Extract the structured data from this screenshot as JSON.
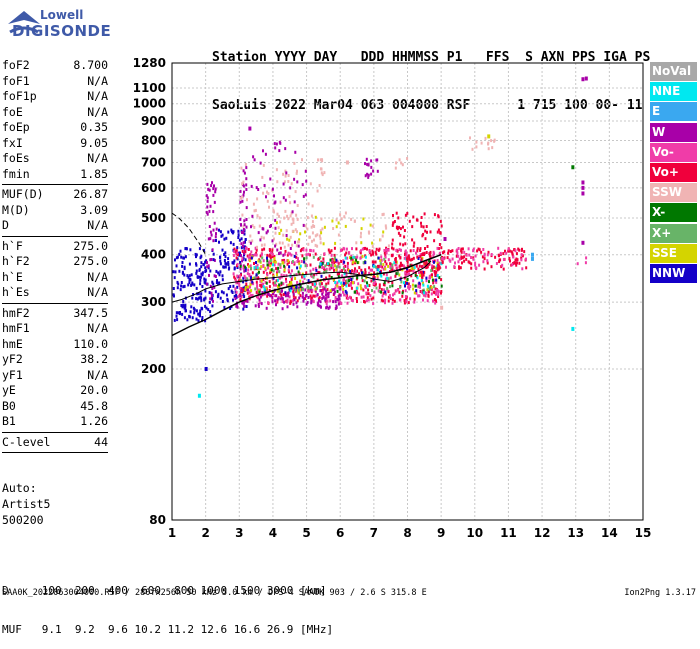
{
  "logo": {
    "top": "Lowell",
    "bottom": "DIGISONDE"
  },
  "header": {
    "line1": "Station YYYY DAY   DDD HHMMSS P1   FFS  S AXN PPS IGA PS",
    "line2": "SaoLuis 2022 Mar04 063 004000 RSF      1 715 100 00- 11"
  },
  "params_group1": [
    {
      "name": "foF2",
      "value": "8.700"
    },
    {
      "name": "foF1",
      "value": "N/A"
    },
    {
      "name": "foF1p",
      "value": "N/A"
    },
    {
      "name": "foE",
      "value": "N/A"
    },
    {
      "name": "foEp",
      "value": "0.35"
    },
    {
      "name": "fxI",
      "value": "9.05"
    },
    {
      "name": "foEs",
      "value": "N/A"
    },
    {
      "name": "fmin",
      "value": "1.85"
    }
  ],
  "params_group2": [
    {
      "name": "MUF(D)",
      "value": "26.87"
    },
    {
      "name": "M(D)",
      "value": "3.09"
    },
    {
      "name": "D",
      "value": "N/A"
    }
  ],
  "params_group3": [
    {
      "name": "h`F",
      "value": "275.0"
    },
    {
      "name": "h`F2",
      "value": "275.0"
    },
    {
      "name": "h`E",
      "value": "N/A"
    },
    {
      "name": "h`Es",
      "value": "N/A"
    }
  ],
  "params_group4": [
    {
      "name": "hmF2",
      "value": "347.5"
    },
    {
      "name": "hmF1",
      "value": "N/A"
    },
    {
      "name": "hmE",
      "value": "110.0"
    },
    {
      "name": "yF2",
      "value": "38.2"
    },
    {
      "name": "yF1",
      "value": "N/A"
    },
    {
      "name": "yE",
      "value": "20.0"
    },
    {
      "name": "B0",
      "value": "45.8"
    },
    {
      "name": "B1",
      "value": "1.26"
    }
  ],
  "params_group5": [
    {
      "name": "C-level",
      "value": "44"
    }
  ],
  "auto": {
    "line1": "Auto:",
    "line2": "Artist5",
    "line3": "500200"
  },
  "muf_table": {
    "row_d": "D     100  200  400  600  800 1000 1500 3000 [km]",
    "row_muf": "MUF   9.1  9.2  9.6 10.2 11.2 12.6 16.6 26.9 [MHz]"
  },
  "footer": {
    "left": "SAA0K_2022063004000.RSF / 280fx256h 50 kHz 5.0 km / DPS-4 SAA0K 903 / 2.6 S 315.8 E",
    "right": "Ion2Png 1.3.17"
  },
  "legend": [
    {
      "label": "NoVal",
      "color": "#a8a8a8"
    },
    {
      "label": "NNE",
      "color": "#00e8f0"
    },
    {
      "label": "E",
      "color": "#3aa8f0"
    },
    {
      "label": "W",
      "color": "#a800a8"
    },
    {
      "label": "Vo-",
      "color": "#f03ca8"
    },
    {
      "label": "Vo+",
      "color": "#f0003c"
    },
    {
      "label": "SSW",
      "color": "#f0b4b4"
    },
    {
      "label": "X-",
      "color": "#007800"
    },
    {
      "label": "X+",
      "color": "#68b468"
    },
    {
      "label": "SSE",
      "color": "#d4d400"
    },
    {
      "label": "NNW",
      "color": "#1400c8"
    }
  ],
  "chart_data": {
    "type": "scatter",
    "xlabel": "",
    "ylabel": "",
    "xlim": [
      1,
      15
    ],
    "ylim": [
      80,
      1280
    ],
    "y_scale": "log",
    "grid": true,
    "x_ticks": [
      "1",
      "2",
      "3",
      "4",
      "5",
      "6",
      "7",
      "8",
      "9",
      "10",
      "11",
      "12",
      "13",
      "14",
      "15"
    ],
    "y_ticks": [
      "80",
      "200",
      "300",
      "400",
      "500",
      "600",
      "700",
      "800",
      "900",
      "1000",
      "1100",
      "1280"
    ],
    "y_tick_values": [
      80,
      200,
      300,
      400,
      500,
      600,
      700,
      800,
      900,
      1000,
      1100,
      1280
    ],
    "profile": {
      "name": "",
      "x": [
        1.0,
        1.5,
        2.0,
        2.5,
        3.0,
        3.5,
        4.0,
        4.5,
        5.0,
        5.5,
        6.0,
        6.5,
        7.0,
        7.5,
        8.0,
        8.5,
        9.0
      ],
      "y": [
        245,
        258,
        270,
        285,
        300,
        312,
        322,
        330,
        337,
        344,
        348,
        352,
        355,
        360,
        370,
        385,
        400
      ]
    },
    "trace": {
      "x": [
        1.0,
        1.3,
        1.7,
        2.0,
        2.5,
        3.0,
        3.5,
        4.0,
        4.5,
        5.0,
        5.5,
        6.0,
        6.5,
        7.0,
        7.5,
        8.0,
        8.5,
        8.7
      ],
      "y": [
        300,
        305,
        315,
        325,
        335,
        340,
        345,
        348,
        352,
        355,
        358,
        360,
        355,
        345,
        340,
        350,
        370,
        385
      ]
    },
    "dashed": {
      "x": [
        1.0,
        1.2,
        1.5,
        1.8,
        2.0
      ],
      "y": [
        515,
        500,
        470,
        430,
        400
      ]
    },
    "regions": [
      {
        "x": [
          1.0,
          2.2
        ],
        "y": [
          270,
          420
        ],
        "color": "#1400c8",
        "density": 0.5
      },
      {
        "x": [
          2.0,
          2.3
        ],
        "y": [
          300,
          640
        ],
        "color": "#a800a8",
        "density": 0.35
      },
      {
        "x": [
          2.2,
          3.2
        ],
        "y": [
          290,
          470
        ],
        "color": "#1400c8",
        "density": 0.45
      },
      {
        "x": [
          3.0,
          3.2
        ],
        "y": [
          350,
          690
        ],
        "color": "#a800a8",
        "density": 0.4
      },
      {
        "x": [
          2.8,
          9.0
        ],
        "y": [
          300,
          420
        ],
        "color": "#f0003c",
        "density": 0.35
      },
      {
        "x": [
          2.8,
          9.0
        ],
        "y": [
          300,
          420
        ],
        "color": "#f03ca8",
        "density": 0.3
      },
      {
        "x": [
          2.8,
          6.0
        ],
        "y": [
          290,
          330
        ],
        "color": "#a800a8",
        "density": 0.45
      },
      {
        "x": [
          3.0,
          5.5
        ],
        "y": [
          420,
          720
        ],
        "color": "#f0b4b4",
        "density": 0.12
      },
      {
        "x": [
          3.0,
          5.0
        ],
        "y": [
          400,
          800
        ],
        "color": "#a800a8",
        "density": 0.08
      },
      {
        "x": [
          3.0,
          9.0
        ],
        "y": [
          320,
          400
        ],
        "color": "#d4d400",
        "density": 0.12
      },
      {
        "x": [
          3.0,
          9.0
        ],
        "y": [
          320,
          400
        ],
        "color": "#68b468",
        "density": 0.1
      },
      {
        "x": [
          3.0,
          9.0
        ],
        "y": [
          320,
          400
        ],
        "color": "#007800",
        "density": 0.06
      },
      {
        "x": [
          3.0,
          9.0
        ],
        "y": [
          320,
          400
        ],
        "color": "#1400c8",
        "density": 0.06
      },
      {
        "x": [
          3.0,
          9.0
        ],
        "y": [
          320,
          400
        ],
        "color": "#00e8f0",
        "density": 0.05
      },
      {
        "x": [
          4.0,
          7.5
        ],
        "y": [
          430,
          520
        ],
        "color": "#d4d400",
        "density": 0.06
      },
      {
        "x": [
          4.0,
          7.5
        ],
        "y": [
          420,
          520
        ],
        "color": "#f0b4b4",
        "density": 0.12
      },
      {
        "x": [
          6.7,
          7.2
        ],
        "y": [
          640,
          740
        ],
        "color": "#a800a8",
        "density": 0.35
      },
      {
        "x": [
          7.6,
          8.0
        ],
        "y": [
          670,
          730
        ],
        "color": "#f0b4b4",
        "density": 0.3
      },
      {
        "x": [
          7.5,
          9.0
        ],
        "y": [
          350,
          520
        ],
        "color": "#f0003c",
        "density": 0.3
      },
      {
        "x": [
          9.0,
          11.5
        ],
        "y": [
          370,
          420
        ],
        "color": "#f0003c",
        "density": 0.45
      },
      {
        "x": [
          9.0,
          11.5
        ],
        "y": [
          370,
          420
        ],
        "color": "#f03ca8",
        "density": 0.25
      },
      {
        "x": [
          9.8,
          10.6
        ],
        "y": [
          760,
          820
        ],
        "color": "#f0b4b4",
        "density": 0.35
      },
      {
        "x": [
          12.9,
          13.4
        ],
        "y": [
          380,
          400
        ],
        "color": "#f03ca8",
        "density": 0.2
      }
    ],
    "points": [
      {
        "x": 13.2,
        "y": 1160,
        "color": "#a800a8"
      },
      {
        "x": 13.3,
        "y": 1165,
        "color": "#a800a8"
      },
      {
        "x": 13.2,
        "y": 620,
        "color": "#a800a8"
      },
      {
        "x": 13.2,
        "y": 600,
        "color": "#a800a8"
      },
      {
        "x": 13.2,
        "y": 580,
        "color": "#a800a8"
      },
      {
        "x": 12.9,
        "y": 680,
        "color": "#007800"
      },
      {
        "x": 12.9,
        "y": 255,
        "color": "#00e8f0"
      },
      {
        "x": 11.7,
        "y": 390,
        "color": "#3aa8f0"
      },
      {
        "x": 11.7,
        "y": 400,
        "color": "#3aa8f0"
      },
      {
        "x": 13.2,
        "y": 430,
        "color": "#a800a8"
      },
      {
        "x": 1.8,
        "y": 170,
        "color": "#00e8f0"
      },
      {
        "x": 2.0,
        "y": 200,
        "color": "#1400c8"
      },
      {
        "x": 9.0,
        "y": 290,
        "color": "#f0b4b4"
      },
      {
        "x": 9.1,
        "y": 440,
        "color": "#a800a8"
      },
      {
        "x": 10.4,
        "y": 820,
        "color": "#d4d400"
      },
      {
        "x": 6.2,
        "y": 700,
        "color": "#f0b4b4"
      },
      {
        "x": 3.3,
        "y": 860,
        "color": "#a800a8"
      }
    ]
  }
}
